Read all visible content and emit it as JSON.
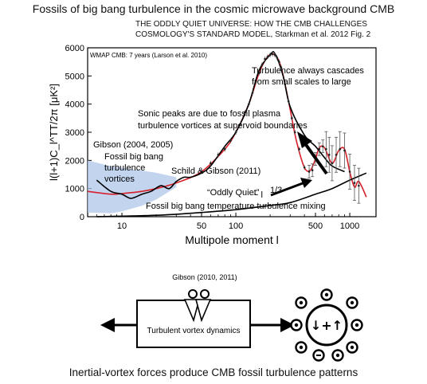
{
  "title": "Fossils of big bang turbulence in the cosmic microwave background CMB",
  "reference": {
    "line1": "THE ODDLY QUIET UNIVERSE: HOW THE CMB CHALLENGES",
    "line2": "COSMOLOGY'S STANDARD MODEL,  Starkman et al. 2012 Fig. 2"
  },
  "chart_data": {
    "type": "line",
    "xscale": "log",
    "xlim": [
      5,
      1700
    ],
    "ylim": [
      0,
      6000
    ],
    "xlabel": "Multipole moment  l",
    "ylabel": "l(l+1)C_l^TT/2π [μK²]",
    "x_ticks": [
      "10",
      "50",
      "100",
      "500",
      "1000"
    ],
    "y_ticks": [
      "0",
      "1000",
      "2000",
      "3000",
      "4000",
      "5000",
      "6000"
    ],
    "legend_text": "WMAP CMB: 7 years (Larson et al. 2010)",
    "series": [
      {
        "color": "#d6202a",
        "x": [
          2,
          5,
          8,
          10,
          15,
          20,
          30,
          50,
          80,
          100,
          130,
          160,
          190,
          220,
          250,
          290,
          340,
          400,
          450,
          500,
          540,
          600,
          700,
          800,
          900,
          1000,
          1100,
          1200,
          1400
        ],
        "y": [
          1050,
          900,
          800,
          820,
          900,
          1000,
          1200,
          1600,
          2400,
          3000,
          4000,
          5100,
          5680,
          5750,
          5300,
          4100,
          2700,
          1750,
          1650,
          2050,
          2450,
          2450,
          1900,
          2350,
          2400,
          1600,
          1050,
          1250,
          700
        ]
      },
      {
        "color": "#000000",
        "x": [
          6,
          8,
          10,
          12,
          15,
          18,
          22,
          26,
          30,
          35,
          40,
          50,
          60,
          80,
          100,
          130,
          160,
          200,
          220,
          260,
          300,
          400,
          500,
          600,
          700,
          900
        ],
        "y": [
          1300,
          900,
          800,
          650,
          800,
          900,
          1100,
          1000,
          1250,
          1400,
          1400,
          1550,
          1800,
          2500,
          3000,
          4000,
          5200,
          5750,
          5800,
          5000,
          3900,
          2900,
          2500,
          2100,
          1800,
          1600
        ]
      },
      {
        "color": "#000000",
        "x": [
          6,
          20,
          50,
          100,
          200,
          300,
          500,
          700,
          1000,
          1400
        ],
        "y": [
          0,
          50,
          150,
          250,
          400,
          500,
          800,
          1000,
          1300,
          1550
        ]
      }
    ],
    "points_x": [
      50,
      60,
      70,
      80,
      90,
      100,
      110,
      120,
      130,
      140,
      150,
      160,
      170,
      180,
      190,
      200,
      210,
      220,
      230,
      240,
      250,
      270,
      290,
      310,
      330,
      360,
      400,
      440,
      470,
      500,
      540,
      580,
      620,
      660,
      700,
      760,
      820,
      900,
      1000,
      1100,
      1200
    ],
    "points_y": [
      1600,
      1900,
      2200,
      2400,
      2700,
      3000,
      3300,
      3700,
      4000,
      4400,
      4800,
      5100,
      5400,
      5600,
      5680,
      5750,
      5780,
      5750,
      5650,
      5500,
      5300,
      4700,
      4100,
      3500,
      3000,
      2400,
      1750,
      1600,
      1650,
      2050,
      2400,
      2500,
      2400,
      2200,
      1900,
      2200,
      2400,
      2350,
      1600,
      1200,
      1100
    ]
  },
  "annotations": {
    "turbulence_cascade_1": "Turbulence always cascades",
    "turbulence_cascade_2": "from small scales to large",
    "sonic_peaks_1": "Sonic peaks are due to fossil plasma",
    "sonic_peaks_2": "turbulence vortices at supervoid boundaries",
    "gibson_year": "Gibson (2004, 2005)",
    "fossil_1": "Fossil big bang",
    "fossil_2": "turbulence",
    "fossil_3": "vortices",
    "schild_gibson": "Schild & Gibson (2011)",
    "oddly_quiet": "“Oddly Quiet”",
    "power_law": "~ l",
    "power_exp": "1/3",
    "mixing": "Fossil big bang temperature turbulence mixing"
  },
  "diagram": {
    "gibson_label": "Gibson (2010, 2011)",
    "box_label": "Turbulent vortex dynamics",
    "glyph": "↓+↑"
  },
  "footer": "Inertial-vortex forces produce CMB fossil turbulence patterns"
}
